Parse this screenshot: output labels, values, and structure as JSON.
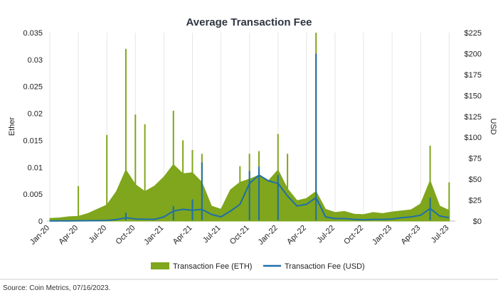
{
  "chart_data": {
    "type": "area",
    "title": "Average Transaction Fee",
    "source": "Source: Coin Metrics, 07/16/2023.",
    "y_left": {
      "label": "Ether",
      "range": [
        0,
        0.035
      ],
      "ticks": [
        "0",
        "0.005",
        "0.01",
        "0.015",
        "0.02",
        "0.025",
        "0.03",
        "0.035"
      ],
      "values": [
        0,
        0.005,
        0.01,
        0.015,
        0.02,
        0.025,
        0.03,
        0.035
      ]
    },
    "y_right": {
      "label": "USD",
      "range": [
        0,
        225
      ],
      "ticks": [
        "$0",
        "$25",
        "$50",
        "$75",
        "$100",
        "$125",
        "$150",
        "$175",
        "$200",
        "$225"
      ],
      "values": [
        0,
        25,
        50,
        75,
        100,
        125,
        150,
        175,
        200,
        225
      ]
    },
    "x_ticks": [
      "Jan-20",
      "Apr-20",
      "Jul-20",
      "Oct-20",
      "Jan-21",
      "Apr-21",
      "Jul-21",
      "Oct-21",
      "Jan-22",
      "Apr-22",
      "Jul-22",
      "Oct-22",
      "Jan-23",
      "Apr-23",
      "Jul-23"
    ],
    "grid": "vertical",
    "legend_position": "bottom-center",
    "series": [
      {
        "name": "Transaction Fee (ETH)",
        "style": "area",
        "axis": "left",
        "color": "#7fa61c",
        "points": [
          [
            "Jan-20",
            0.0005
          ],
          [
            "Feb-20",
            0.0006
          ],
          [
            "Mar-20",
            0.0008
          ],
          [
            "Apr-20",
            0.0009
          ],
          [
            "May-20",
            0.0014
          ],
          [
            "Jun-20",
            0.0022
          ],
          [
            "Jul-20",
            0.003
          ],
          [
            "Aug-20",
            0.0055
          ],
          [
            "Sep-20",
            0.0095
          ],
          [
            "Oct-20",
            0.0068
          ],
          [
            "Nov-20",
            0.0055
          ],
          [
            "Dec-20",
            0.0065
          ],
          [
            "Jan-21",
            0.0082
          ],
          [
            "Feb-21",
            0.0105
          ],
          [
            "Mar-21",
            0.0088
          ],
          [
            "Apr-21",
            0.009
          ],
          [
            "May-21",
            0.0072
          ],
          [
            "Jun-21",
            0.0028
          ],
          [
            "Jul-21",
            0.0022
          ],
          [
            "Aug-21",
            0.0058
          ],
          [
            "Sep-21",
            0.0072
          ],
          [
            "Oct-21",
            0.0078
          ],
          [
            "Nov-21",
            0.0085
          ],
          [
            "Dec-21",
            0.0075
          ],
          [
            "Jan-22",
            0.0095
          ],
          [
            "Feb-22",
            0.006
          ],
          [
            "Mar-22",
            0.0038
          ],
          [
            "Apr-22",
            0.0042
          ],
          [
            "May-22",
            0.0055
          ],
          [
            "Jun-22",
            0.0022
          ],
          [
            "Jul-22",
            0.0016
          ],
          [
            "Aug-22",
            0.0018
          ],
          [
            "Sep-22",
            0.0013
          ],
          [
            "Oct-22",
            0.0012
          ],
          [
            "Nov-22",
            0.0016
          ],
          [
            "Dec-22",
            0.0014
          ],
          [
            "Jan-23",
            0.0017
          ],
          [
            "Feb-23",
            0.0019
          ],
          [
            "Mar-23",
            0.0021
          ],
          [
            "Apr-23",
            0.0032
          ],
          [
            "May-23",
            0.0075
          ],
          [
            "Jun-23",
            0.0028
          ],
          [
            "Jul-23",
            0.002
          ]
        ],
        "spikes": [
          [
            "Apr-20",
            0.0065
          ],
          [
            "Jul-20",
            0.016
          ],
          [
            "Sep-20",
            0.032
          ],
          [
            "Oct-20",
            0.0198
          ],
          [
            "Nov-20",
            0.018
          ],
          [
            "Feb-21",
            0.0205
          ],
          [
            "Mar-21",
            0.015
          ],
          [
            "Apr-21",
            0.0132
          ],
          [
            "May-21",
            0.0125
          ],
          [
            "Sep-21",
            0.0102
          ],
          [
            "Oct-21",
            0.0125
          ],
          [
            "Nov-21",
            0.013
          ],
          [
            "Jan-22",
            0.0162
          ],
          [
            "Feb-22",
            0.0125
          ],
          [
            "May-22",
            0.035
          ],
          [
            "May-23",
            0.014
          ],
          [
            "Jul-23",
            0.0072
          ]
        ]
      },
      {
        "name": "Transaction Fee (USD)",
        "style": "line",
        "axis": "right",
        "color": "#1f6fa8",
        "points": [
          [
            "Jan-20",
            0.1
          ],
          [
            "Feb-20",
            0.15
          ],
          [
            "Mar-20",
            0.2
          ],
          [
            "Apr-20",
            0.3
          ],
          [
            "May-20",
            0.4
          ],
          [
            "Jun-20",
            0.5
          ],
          [
            "Jul-20",
            0.8
          ],
          [
            "Aug-20",
            1.8
          ],
          [
            "Sep-20",
            4
          ],
          [
            "Oct-20",
            2.5
          ],
          [
            "Nov-20",
            2.2
          ],
          [
            "Dec-20",
            2
          ],
          [
            "Jan-21",
            5
          ],
          [
            "Feb-21",
            12
          ],
          [
            "Mar-21",
            14
          ],
          [
            "Apr-21",
            13
          ],
          [
            "May-21",
            14
          ],
          [
            "Jun-21",
            8
          ],
          [
            "Jul-21",
            5
          ],
          [
            "Aug-21",
            12
          ],
          [
            "Sep-21",
            20
          ],
          [
            "Oct-21",
            45
          ],
          [
            "Nov-21",
            55
          ],
          [
            "Dec-21",
            48
          ],
          [
            "Jan-22",
            45
          ],
          [
            "Feb-22",
            30
          ],
          [
            "Mar-22",
            18
          ],
          [
            "Apr-22",
            20
          ],
          [
            "May-22",
            28
          ],
          [
            "Jun-22",
            5
          ],
          [
            "Jul-22",
            3
          ],
          [
            "Aug-22",
            3
          ],
          [
            "Sep-22",
            2
          ],
          [
            "Oct-22",
            1.5
          ],
          [
            "Nov-22",
            2
          ],
          [
            "Dec-22",
            2
          ],
          [
            "Jan-23",
            2.5
          ],
          [
            "Feb-23",
            4
          ],
          [
            "Mar-23",
            5
          ],
          [
            "Apr-23",
            7
          ],
          [
            "May-23",
            15
          ],
          [
            "Jun-23",
            6
          ],
          [
            "Jul-23",
            4
          ]
        ],
        "spikes": [
          [
            "Sep-20",
            10
          ],
          [
            "Feb-21",
            18
          ],
          [
            "Apr-21",
            26
          ],
          [
            "May-21",
            70
          ],
          [
            "Oct-21",
            60
          ],
          [
            "Nov-21",
            65
          ],
          [
            "Jan-22",
            55
          ],
          [
            "May-22",
            200
          ],
          [
            "May-23",
            28
          ]
        ]
      }
    ]
  }
}
